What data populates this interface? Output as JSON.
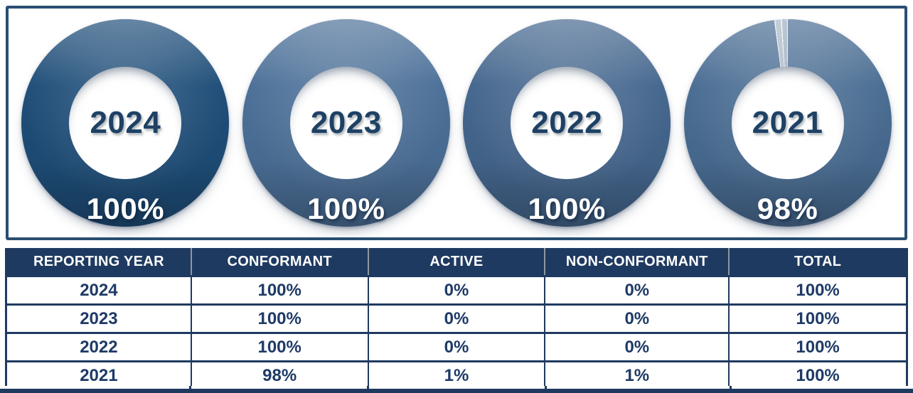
{
  "panel": {
    "border_color": "#2A4E72"
  },
  "charts": [
    {
      "year": "2024",
      "pct": "100%",
      "ring_color": "#1F4E79"
    },
    {
      "year": "2023",
      "pct": "100%",
      "ring_color": "#4C7098"
    },
    {
      "year": "2022",
      "pct": "100%",
      "ring_color": "#45678E"
    },
    {
      "year": "2021",
      "pct": "98%",
      "ring_color": "#4A6D93",
      "sliver_colors": [
        "#ACB8C7",
        "#9FAEC0"
      ]
    }
  ],
  "table": {
    "headers": [
      "REPORTING YEAR",
      "CONFORMANT",
      "ACTIVE",
      "NON-CONFORMANT",
      "TOTAL"
    ],
    "rows": [
      [
        "2024",
        "100%",
        "0%",
        "0%",
        "100%"
      ],
      [
        "2023",
        "100%",
        "0%",
        "0%",
        "100%"
      ],
      [
        "2022",
        "100%",
        "0%",
        "0%",
        "100%"
      ],
      [
        "2021",
        "98%",
        "1%",
        "1%",
        "100%"
      ]
    ],
    "header_bg": "#1F3A60",
    "header_text_color": "#FFFFFF",
    "cell_text_color": "#1E3A66",
    "border_color": "#1F3A60"
  },
  "chart_data": [
    {
      "type": "pie",
      "title": "2024",
      "labels": [
        "Conformant",
        "Active",
        "Non-Conformant"
      ],
      "values": [
        100,
        0,
        0
      ],
      "center_label": "2024",
      "data_label": "100%",
      "hole": 0.54,
      "colors": [
        "#1F4E79"
      ]
    },
    {
      "type": "pie",
      "title": "2023",
      "labels": [
        "Conformant",
        "Active",
        "Non-Conformant"
      ],
      "values": [
        100,
        0,
        0
      ],
      "center_label": "2023",
      "data_label": "100%",
      "hole": 0.54,
      "colors": [
        "#4C7098"
      ]
    },
    {
      "type": "pie",
      "title": "2022",
      "labels": [
        "Conformant",
        "Active",
        "Non-Conformant"
      ],
      "values": [
        100,
        0,
        0
      ],
      "center_label": "2022",
      "data_label": "100%",
      "hole": 0.54,
      "colors": [
        "#45678E"
      ]
    },
    {
      "type": "pie",
      "title": "2021",
      "labels": [
        "Conformant",
        "Active",
        "Non-Conformant"
      ],
      "values": [
        98,
        1,
        1
      ],
      "center_label": "2021",
      "data_label": "98%",
      "hole": 0.54,
      "colors": [
        "#4A6D93",
        "#ACB8C7",
        "#9FAEC0"
      ]
    },
    {
      "type": "table",
      "columns": [
        "REPORTING YEAR",
        "CONFORMANT",
        "ACTIVE",
        "NON-CONFORMANT",
        "TOTAL"
      ],
      "rows": [
        [
          "2024",
          "100%",
          "0%",
          "0%",
          "100%"
        ],
        [
          "2023",
          "100%",
          "0%",
          "0%",
          "100%"
        ],
        [
          "2022",
          "100%",
          "0%",
          "0%",
          "100%"
        ],
        [
          "2021",
          "98%",
          "1%",
          "1%",
          "100%"
        ]
      ]
    }
  ]
}
